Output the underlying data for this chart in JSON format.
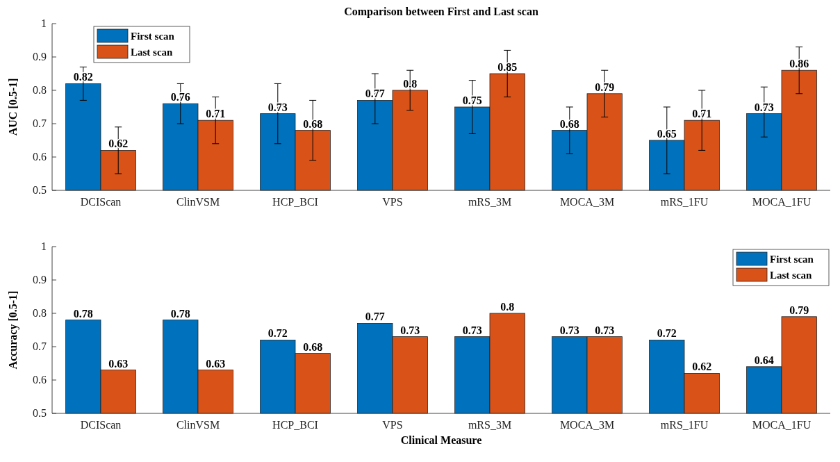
{
  "chart_data": [
    {
      "type": "bar",
      "title": "Comparison between First and Last scan",
      "ylabel": "AUC [0.5-1]",
      "categories": [
        "DCIScan",
        "ClinVSM",
        "HCP_BCI",
        "VPS",
        "mRS_3M",
        "MOCA_3M",
        "mRS_1FU",
        "MOCA_1FU"
      ],
      "series": [
        {
          "name": "First scan",
          "color": "#0072bd",
          "values": [
            0.82,
            0.76,
            0.73,
            0.77,
            0.75,
            0.68,
            0.65,
            0.73
          ],
          "errors": [
            [
              0.77,
              0.87
            ],
            [
              0.7,
              0.82
            ],
            [
              0.64,
              0.82
            ],
            [
              0.7,
              0.85
            ],
            [
              0.67,
              0.83
            ],
            [
              0.61,
              0.75
            ],
            [
              0.55,
              0.75
            ],
            [
              0.66,
              0.81
            ]
          ]
        },
        {
          "name": "Last scan",
          "color": "#d95319",
          "values": [
            0.62,
            0.71,
            0.68,
            0.8,
            0.85,
            0.79,
            0.71,
            0.86
          ],
          "errors": [
            [
              0.55,
              0.69
            ],
            [
              0.64,
              0.78
            ],
            [
              0.59,
              0.77
            ],
            [
              0.74,
              0.86
            ],
            [
              0.78,
              0.92
            ],
            [
              0.72,
              0.86
            ],
            [
              0.62,
              0.8
            ],
            [
              0.79,
              0.93
            ]
          ]
        }
      ],
      "ylim": [
        0.5,
        1
      ],
      "yticks": [
        0.5,
        0.6,
        0.7,
        0.8,
        0.9,
        1
      ],
      "data_labels": true,
      "legend": "top left",
      "grid": false
    },
    {
      "type": "bar",
      "xlabel": "Clinical Measure",
      "ylabel": "Accuracy [0.5-1]",
      "categories": [
        "DCIScan",
        "ClinVSM",
        "HCP_BCI",
        "VPS",
        "mRS_3M",
        "MOCA_3M",
        "mRS_1FU",
        "MOCA_1FU"
      ],
      "series": [
        {
          "name": "First scan",
          "color": "#0072bd",
          "values": [
            0.78,
            0.78,
            0.72,
            0.77,
            0.73,
            0.73,
            0.72,
            0.64
          ]
        },
        {
          "name": "Last scan",
          "color": "#d95319",
          "values": [
            0.63,
            0.63,
            0.68,
            0.73,
            0.8,
            0.73,
            0.62,
            0.79
          ]
        }
      ],
      "ylim": [
        0.5,
        1
      ],
      "yticks": [
        0.5,
        0.6,
        0.7,
        0.8,
        0.9,
        1
      ],
      "data_labels": true,
      "legend": "top right",
      "grid": false
    }
  ]
}
